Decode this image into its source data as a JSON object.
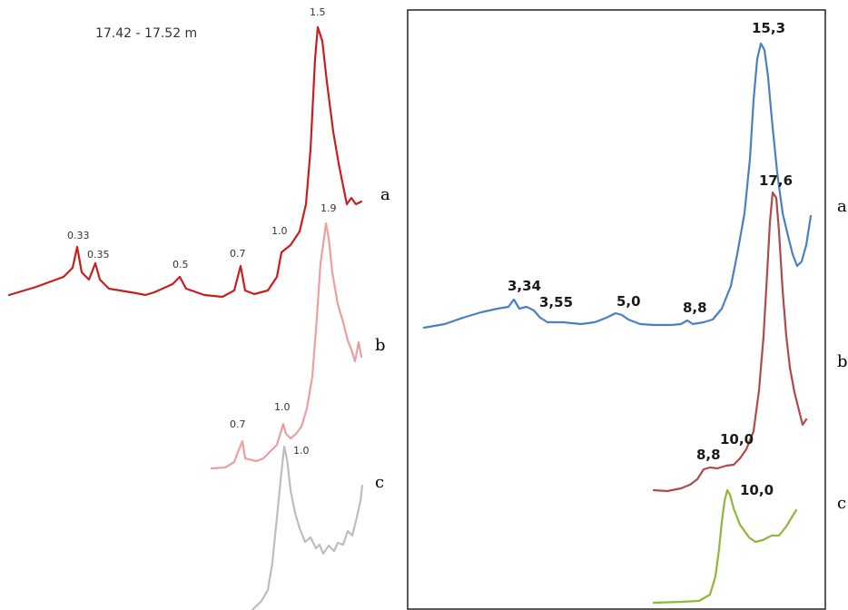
{
  "chart_data": [
    {
      "type": "line",
      "title": "17.42 - 17.52 m",
      "series": [
        {
          "name": "a",
          "color": "#c81e1e",
          "peaks": [
            "0.33",
            "0.35",
            "0.5",
            "0.7",
            "1.0",
            "1.5"
          ]
        },
        {
          "name": "b",
          "color": "#eaa0a0",
          "peaks": [
            "0.7",
            "1.0",
            "1.9"
          ]
        },
        {
          "name": "c",
          "color": "#bdbdbd",
          "peaks": [
            "1.0"
          ]
        }
      ]
    },
    {
      "type": "line",
      "series": [
        {
          "name": "a",
          "color": "#4a7fc1",
          "peaks": [
            "3,34",
            "3,55",
            "5,0",
            "8,8",
            "15,3"
          ]
        },
        {
          "name": "b",
          "color": "#b04a4a",
          "peaks": [
            "8,8",
            "10,0",
            "17,6"
          ]
        },
        {
          "name": "c",
          "color": "#8db83a",
          "peaks": [
            "10,0"
          ]
        }
      ]
    }
  ]
}
